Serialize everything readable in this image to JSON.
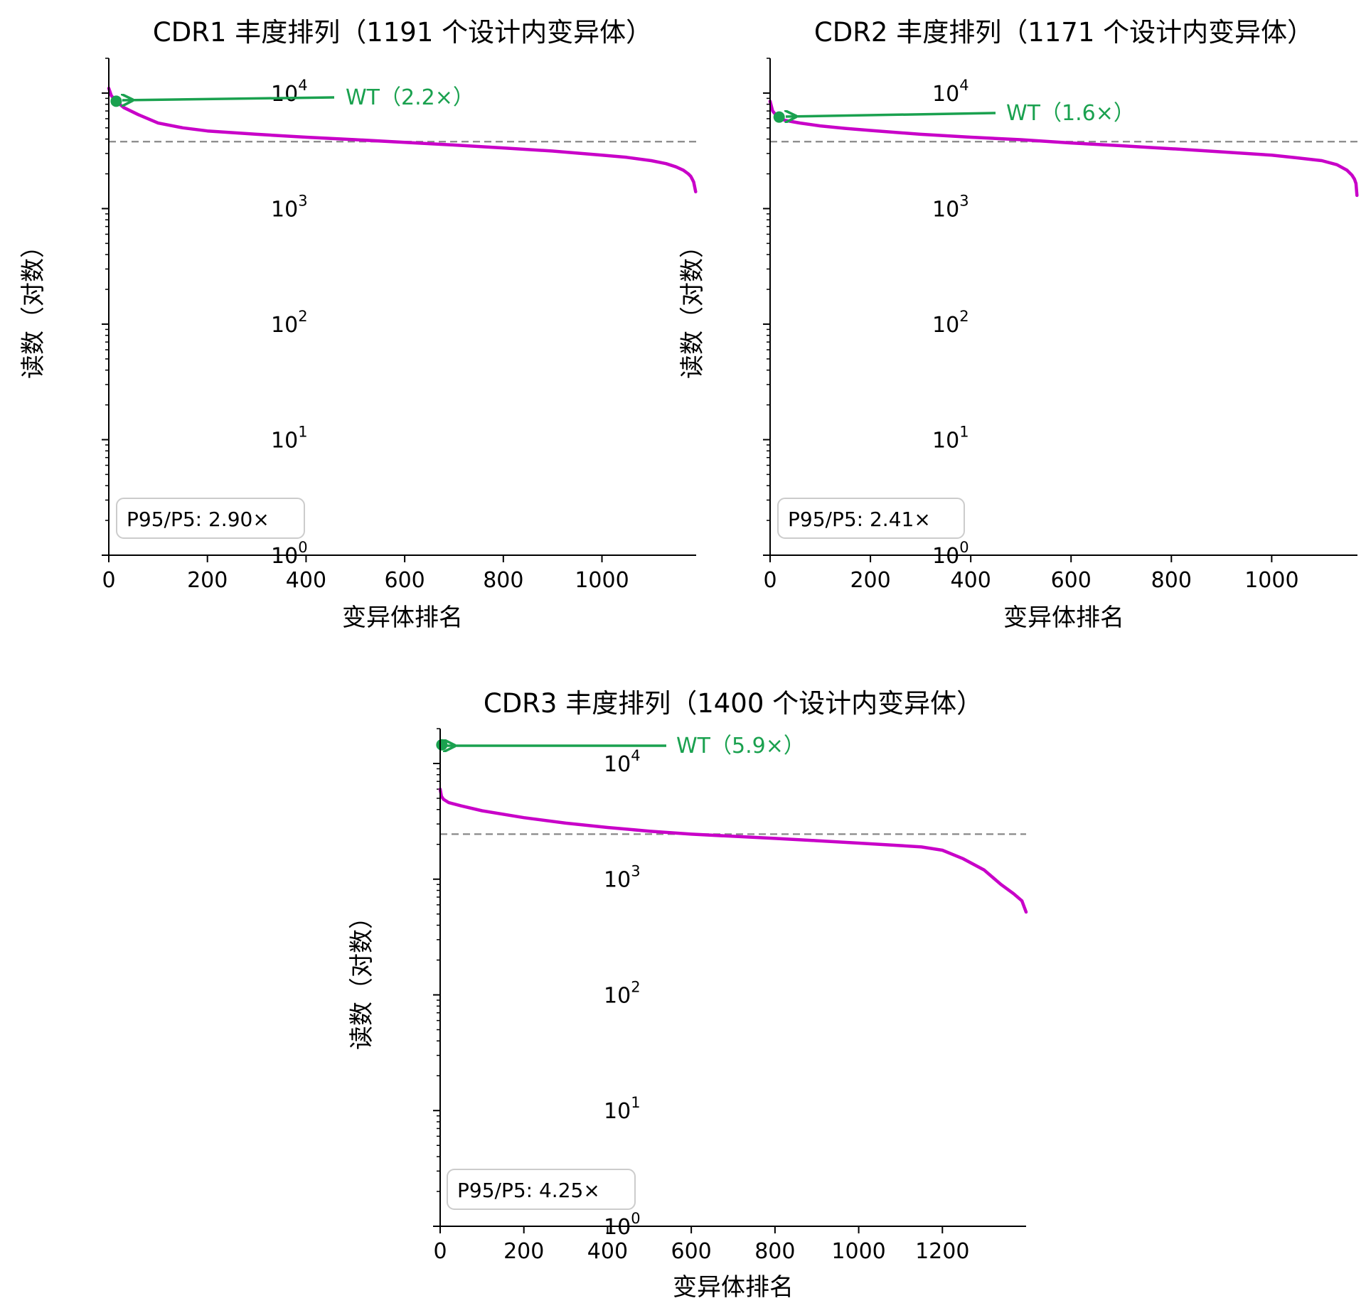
{
  "colors": {
    "curve": "#c800c8",
    "wt": "#1aa14f",
    "median_line": "#888888",
    "axis": "#000000",
    "statbox_border": "#cccccc"
  },
  "chart_data": [
    {
      "type": "line",
      "title": "CDR1 丰度排列（1191 个设计内变异体）",
      "xlabel": "变异体排名",
      "ylabel": "读数（对数）",
      "yscale": "log",
      "xlim": [
        0,
        1191
      ],
      "ylim": [
        1,
        20000
      ],
      "xticks": [
        0,
        200,
        400,
        600,
        800,
        1000
      ],
      "yticks": [
        {
          "base": "10",
          "exp": "0"
        },
        {
          "base": "10",
          "exp": "1"
        },
        {
          "base": "10",
          "exp": "2"
        },
        {
          "base": "10",
          "exp": "3"
        },
        {
          "base": "10",
          "exp": "4"
        }
      ],
      "grid": false,
      "median": 3800,
      "curve": {
        "x": [
          0,
          5,
          15,
          30,
          60,
          100,
          150,
          200,
          300,
          400,
          500,
          600,
          700,
          800,
          900,
          1000,
          1050,
          1100,
          1130,
          1150,
          1165,
          1175,
          1180,
          1183,
          1186,
          1190
        ],
        "y": [
          11000,
          9500,
          8500,
          7500,
          6500,
          5500,
          5000,
          4700,
          4400,
          4150,
          3950,
          3750,
          3550,
          3350,
          3150,
          2900,
          2780,
          2600,
          2450,
          2300,
          2150,
          2000,
          1900,
          1800,
          1700,
          1400
        ]
      },
      "wt": {
        "label": "WT（2.2×）",
        "x": 15,
        "y": 8500
      },
      "stat": "P95/P5: 2.90×"
    },
    {
      "type": "line",
      "title": "CDR2 丰度排列（1171 个设计内变异体）",
      "xlabel": "变异体排名",
      "ylabel": "读数（对数）",
      "yscale": "log",
      "xlim": [
        0,
        1171
      ],
      "ylim": [
        1,
        20000
      ],
      "xticks": [
        0,
        200,
        400,
        600,
        800,
        1000
      ],
      "yticks": [
        {
          "base": "10",
          "exp": "0"
        },
        {
          "base": "10",
          "exp": "1"
        },
        {
          "base": "10",
          "exp": "2"
        },
        {
          "base": "10",
          "exp": "3"
        },
        {
          "base": "10",
          "exp": "4"
        }
      ],
      "grid": false,
      "median": 3800,
      "curve": {
        "x": [
          0,
          5,
          15,
          30,
          60,
          100,
          150,
          200,
          300,
          400,
          500,
          600,
          700,
          800,
          900,
          1000,
          1050,
          1100,
          1130,
          1150,
          1160,
          1165,
          1168,
          1170
        ],
        "y": [
          8500,
          7000,
          6200,
          5800,
          5500,
          5200,
          4950,
          4750,
          4400,
          4150,
          3950,
          3700,
          3500,
          3300,
          3100,
          2900,
          2750,
          2600,
          2400,
          2150,
          1950,
          1800,
          1650,
          1300
        ]
      },
      "wt": {
        "label": "WT（1.6×）",
        "x": 18,
        "y": 6200
      },
      "stat": "P95/P5: 2.41×"
    },
    {
      "type": "line",
      "title": "CDR3 丰度排列（1400 个设计内变异体）",
      "xlabel": "变异体排名",
      "ylabel": "读数（对数）",
      "yscale": "log",
      "xlim": [
        0,
        1400
      ],
      "ylim": [
        1,
        20000
      ],
      "xticks": [
        0,
        200,
        400,
        600,
        800,
        1000,
        1200
      ],
      "yticks": [
        {
          "base": "10",
          "exp": "0"
        },
        {
          "base": "10",
          "exp": "1"
        },
        {
          "base": "10",
          "exp": "2"
        },
        {
          "base": "10",
          "exp": "3"
        },
        {
          "base": "10",
          "exp": "4"
        }
      ],
      "grid": false,
      "median": 2450,
      "curve": {
        "x": [
          0,
          3,
          8,
          20,
          50,
          100,
          200,
          300,
          400,
          500,
          600,
          700,
          800,
          900,
          1000,
          1100,
          1150,
          1200,
          1250,
          1300,
          1340,
          1370,
          1390,
          1400
        ],
        "y": [
          6000,
          5200,
          4900,
          4600,
          4300,
          3900,
          3400,
          3050,
          2800,
          2600,
          2450,
          2350,
          2250,
          2150,
          2050,
          1950,
          1900,
          1780,
          1500,
          1200,
          900,
          750,
          650,
          520
        ]
      },
      "wt": {
        "label": "WT（5.9×）",
        "x": 4,
        "y": 14500
      },
      "stat": "P95/P5: 4.25×"
    }
  ]
}
